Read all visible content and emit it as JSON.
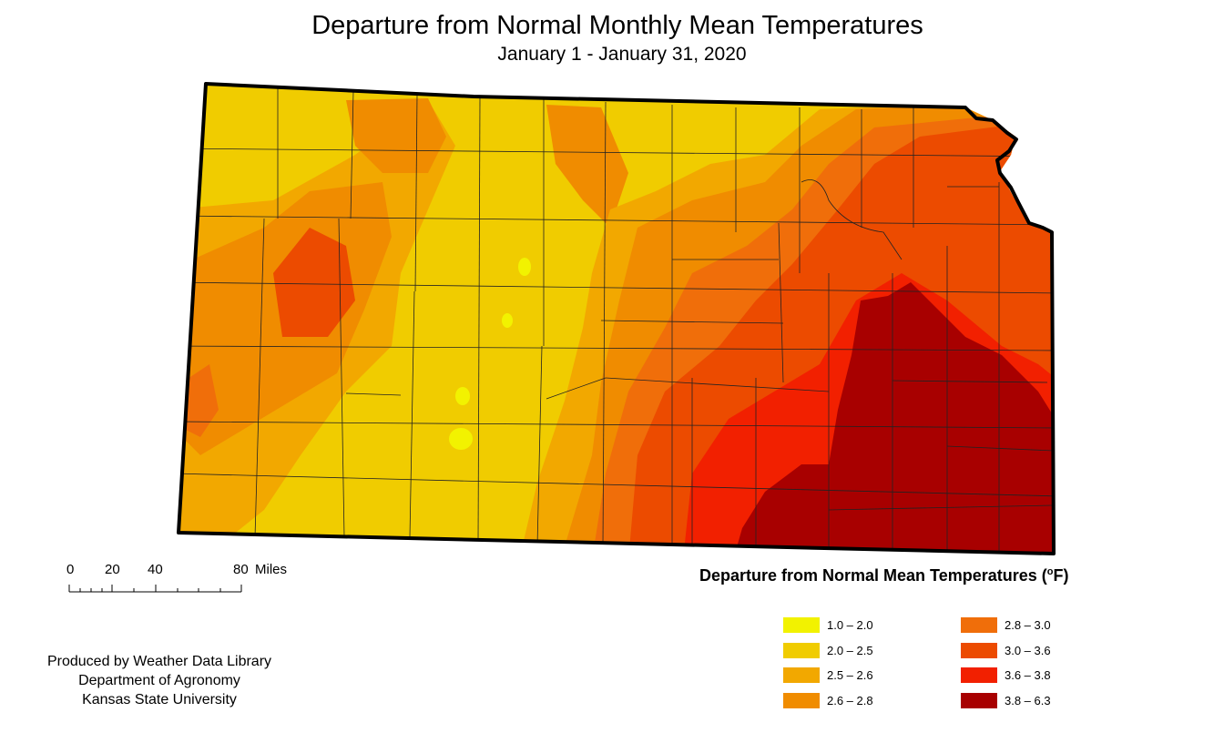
{
  "title": "Departure from Normal Monthly Mean Temperatures",
  "subtitle": "January 1 - January 31, 2020",
  "scale": {
    "ticks": [
      "0",
      "20",
      "40",
      "80"
    ],
    "unit": "Miles"
  },
  "legend": {
    "title": "Departure from Normal Mean Temperatures (",
    "unit_sup": "o",
    "unit_tail": "F)",
    "classes": [
      {
        "label": "1.0 – 2.0",
        "color": "#f2f200"
      },
      {
        "label": "2.0 – 2.5",
        "color": "#f0cc00"
      },
      {
        "label": "2.5 – 2.6",
        "color": "#f2a800"
      },
      {
        "label": "2.6 – 2.8",
        "color": "#f08c00"
      },
      {
        "label": "2.8 – 3.0",
        "color": "#f06e0a"
      },
      {
        "label": "3.0 – 3.6",
        "color": "#ec4b00"
      },
      {
        "label": "3.6 – 3.8",
        "color": "#f22000"
      },
      {
        "label": "3.8 – 6.3",
        "color": "#a80000"
      }
    ]
  },
  "credits": {
    "line1": "Produced by Weather Data Library",
    "line2": "Department of Agronomy",
    "line3": "Kansas State University"
  }
}
